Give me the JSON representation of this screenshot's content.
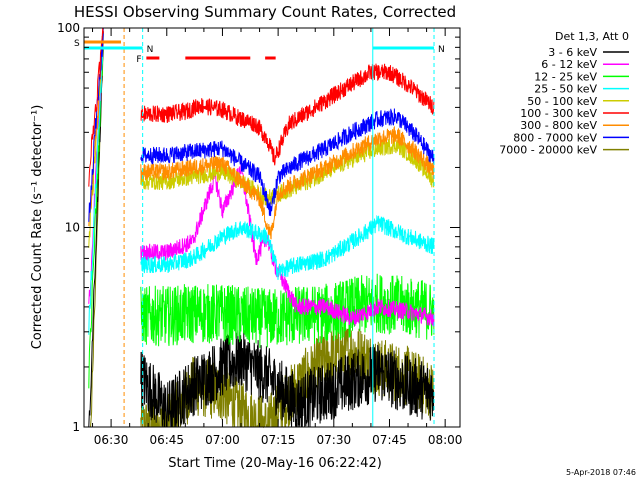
{
  "chart_data": {
    "type": "line",
    "title": "HESSI Observing Summary Count Rates, Corrected",
    "xlabel": "Start Time (20-May-16 06:22:42)",
    "ylabel": "Corrected Count Rate (s⁻¹ detector⁻¹)",
    "yscale": "log",
    "ylim": [
      1,
      100
    ],
    "xlim_minutes_of_day": [
      382.7,
      484
    ],
    "x_ticks": [
      "06:30",
      "06:45",
      "07:00",
      "07:15",
      "07:30",
      "07:45",
      "08:00"
    ],
    "y_ticks": [
      "1",
      "10",
      "100"
    ],
    "legend_title": "Det 1,3, Att 0",
    "legend_position": "right",
    "timestamp": "5-Apr-2018 07:46",
    "flags": [
      {
        "label": "S",
        "color": "#ff8c00",
        "x_start": "06:22:42",
        "x_end": "06:32:40"
      },
      {
        "label": "N",
        "color": "#00ffff",
        "x_start": "06:22:42",
        "x_end": "06:38:30"
      },
      {
        "label": "N",
        "color": "#00ffff",
        "x_start": "07:40:30",
        "x_end": "07:57:00"
      },
      {
        "label": "F",
        "color": "#ff0000",
        "x_start": "06:39:30",
        "x_end": "06:43:00"
      },
      {
        "label": "",
        "color": "#ff0000",
        "x_start": "06:50:00",
        "x_end": "07:07:30"
      },
      {
        "label": "",
        "color": "#ff0000",
        "x_start": "07:11:30",
        "x_end": "07:14:20"
      }
    ],
    "vlines": [
      {
        "x": "06:33:30",
        "color": "#ff8c00",
        "style": "dashed"
      },
      {
        "x": "06:38:30",
        "color": "#00ffff",
        "style": "dashed"
      },
      {
        "x": "07:40:30",
        "color": "#00ffff",
        "style": "solid"
      },
      {
        "x": "07:57:00",
        "color": "#00ffff",
        "style": "dashed"
      }
    ],
    "data_gap": {
      "start": "06:28:00",
      "end": "06:37:30"
    },
    "series": [
      {
        "name": "3 - 6 keV",
        "color": "#000000",
        "x": [
          "06:38",
          "06:45",
          "06:52",
          "07:00",
          "07:05",
          "07:12",
          "07:20",
          "07:28",
          "07:35",
          "07:42",
          "07:50",
          "07:57"
        ],
        "values": [
          1.8,
          1.2,
          1.6,
          2.0,
          2.2,
          1.8,
          1.3,
          1.5,
          1.7,
          1.9,
          1.6,
          1.5
        ]
      },
      {
        "name": "6 - 12 keV",
        "color": "#ff00ff",
        "x": [
          "06:38",
          "06:45",
          "06:52",
          "06:58",
          "07:00",
          "07:05",
          "07:09",
          "07:12",
          "07:14",
          "07:20",
          "07:28",
          "07:35",
          "07:42",
          "07:50",
          "07:57"
        ],
        "values": [
          7.5,
          7.5,
          8.5,
          18,
          12,
          20,
          7.0,
          9.0,
          6.5,
          4.0,
          4.0,
          3.5,
          4.0,
          3.8,
          3.5
        ]
      },
      {
        "name": "12 - 25 keV",
        "color": "#00ff00",
        "x": [
          "06:38",
          "06:45",
          "06:52",
          "07:00",
          "07:05",
          "07:12",
          "07:20",
          "07:28",
          "07:35",
          "07:42",
          "07:50",
          "07:57"
        ],
        "values": [
          3.6,
          3.6,
          3.7,
          3.7,
          3.6,
          3.5,
          3.6,
          3.7,
          4.0,
          4.2,
          4.0,
          3.8
        ]
      },
      {
        "name": "25 - 50 keV",
        "color": "#00ffff",
        "x": [
          "06:38",
          "06:45",
          "06:52",
          "07:00",
          "07:05",
          "07:12",
          "07:15",
          "07:20",
          "07:28",
          "07:35",
          "07:42",
          "07:50",
          "07:57"
        ],
        "values": [
          6.5,
          6.5,
          7.0,
          9.0,
          10.0,
          9.0,
          6.0,
          6.5,
          7.0,
          8.5,
          10.5,
          9.0,
          8.0
        ]
      },
      {
        "name": "50 - 100 keV",
        "color": "#cccc00",
        "x": [
          "06:38",
          "06:45",
          "06:52",
          "07:00",
          "07:05",
          "07:12",
          "07:20",
          "07:28",
          "07:35",
          "07:42",
          "07:47",
          "07:52",
          "07:57"
        ],
        "values": [
          17,
          17,
          18,
          19,
          17,
          14,
          16,
          19,
          22,
          25,
          26,
          22,
          17
        ]
      },
      {
        "name": "100 - 300 keV",
        "color": "#ff0000",
        "x": [
          "06:38",
          "06:45",
          "06:50",
          "06:54",
          "07:00",
          "07:05",
          "07:09",
          "07:12",
          "07:14",
          "07:18",
          "07:25",
          "07:33",
          "07:40",
          "07:45",
          "07:50",
          "07:57"
        ],
        "values": [
          37,
          37,
          38,
          41,
          39,
          35,
          33,
          28,
          22,
          33,
          40,
          50,
          60,
          60,
          52,
          40
        ]
      },
      {
        "name": "300 - 800 keV",
        "color": "#ff8c00",
        "x": [
          "06:38",
          "06:45",
          "06:52",
          "07:00",
          "07:05",
          "07:10",
          "07:13",
          "07:15",
          "07:20",
          "07:28",
          "07:35",
          "07:42",
          "07:47",
          "07:52",
          "07:57"
        ],
        "values": [
          19,
          19,
          20,
          21,
          17,
          14,
          9,
          15,
          17,
          20,
          24,
          28,
          29,
          24,
          19
        ]
      },
      {
        "name": "800 - 7000 keV",
        "color": "#0000ff",
        "x": [
          "06:38",
          "06:45",
          "06:52",
          "07:00",
          "07:05",
          "07:10",
          "07:13",
          "07:15",
          "07:20",
          "07:28",
          "07:35",
          "07:42",
          "07:47",
          "07:52",
          "07:57"
        ],
        "values": [
          23,
          23,
          24,
          25,
          21,
          18,
          12,
          18,
          21,
          25,
          30,
          35,
          36,
          29,
          22
        ]
      },
      {
        "name": "7000 - 20000 keV",
        "color": "#808000",
        "x": [
          "06:38",
          "06:45",
          "06:52",
          "07:00",
          "07:05",
          "07:12",
          "07:20",
          "07:28",
          "07:35",
          "07:42",
          "07:50",
          "07:57"
        ],
        "values": [
          1.0,
          1.0,
          1.6,
          1.5,
          1.2,
          1.0,
          1.6,
          2.2,
          2.4,
          2.0,
          1.8,
          1.5
        ]
      }
    ]
  }
}
